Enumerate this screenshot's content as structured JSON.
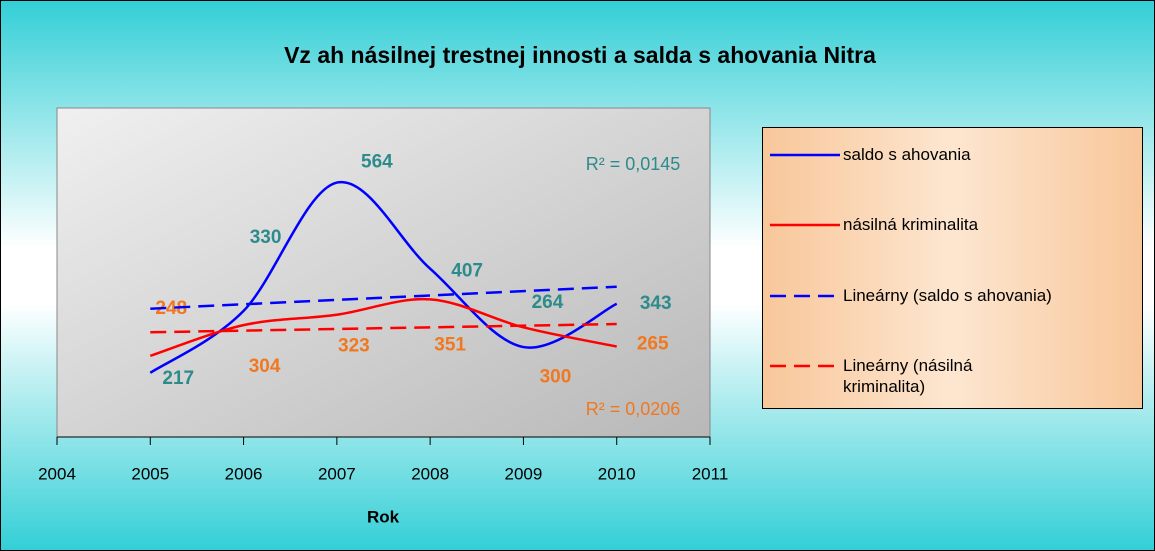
{
  "chart_data": {
    "type": "line",
    "title": "Vz  ah násilnej trestnej   innosti a salda s  ahovania Nitra",
    "x_label": "Rok",
    "xlim": [
      2004,
      2011
    ],
    "xticks": [
      2004,
      2005,
      2006,
      2007,
      2008,
      2009,
      2010,
      2011
    ],
    "ylim": [
      100,
      700
    ],
    "series": [
      {
        "name": "saldo s  ahovania",
        "color": "#0000ff",
        "label_color": "#2e8b8b",
        "dashed": false,
        "x": [
          2005,
          2006,
          2007,
          2008,
          2009,
          2010
        ],
        "values": [
          217,
          330,
          564,
          407,
          264,
          343
        ]
      },
      {
        "name": "násilná kriminalita",
        "color": "#ff0000",
        "label_color": "#f07820",
        "dashed": false,
        "x": [
          2005,
          2006,
          2007,
          2008,
          2009,
          2010
        ],
        "values": [
          248,
          304,
          323,
          351,
          300,
          265
        ]
      },
      {
        "name": "Lineárny (saldo s  ahovania)",
        "color": "#0000ff",
        "dashed": true,
        "x": [
          2005,
          2010
        ],
        "values": [
          334,
          374
        ]
      },
      {
        "name": "Lineárny (násilná kriminalita)",
        "color": "#ff0000",
        "dashed": true,
        "x": [
          2005,
          2010
        ],
        "values": [
          291,
          306
        ]
      }
    ],
    "annotations": [
      {
        "text": "R² = 0,0145",
        "color": "#2e8b8b"
      },
      {
        "text": "R² = 0,0206",
        "color": "#f07820"
      }
    ]
  }
}
